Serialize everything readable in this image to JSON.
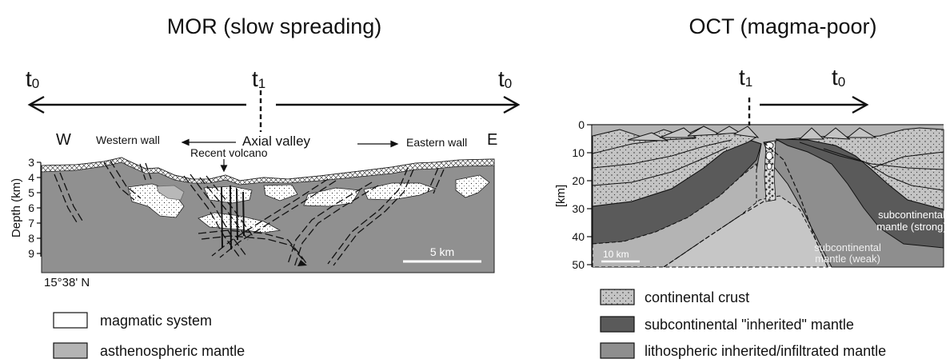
{
  "left_panel": {
    "title": "MOR (slow spreading)",
    "time_labels": {
      "left": "t",
      "left_sub": "0",
      "center": "t",
      "center_sub": "1",
      "right": "t",
      "right_sub": "0"
    },
    "labels": {
      "west": "W",
      "east": "E",
      "western_wall": "Western wall",
      "axial_valley": "Axial valley",
      "recent_volcano": "Recent volcano",
      "eastern_wall": "Eastern wall",
      "scale_bar": "5 km",
      "latitude": "15°38' N"
    },
    "depth_axis": {
      "label": "Depth (km)",
      "ticks": [
        "3",
        "4",
        "5",
        "6",
        "7",
        "8",
        "9"
      ]
    }
  },
  "right_panel": {
    "title": "OCT (magma-poor)",
    "time_labels": {
      "left": "t",
      "left_sub": "1",
      "right": "t",
      "right_sub": "0"
    },
    "axis": {
      "label": "[km]",
      "ticks": [
        "0",
        "10",
        "20",
        "30",
        "40",
        "50"
      ]
    },
    "labels": {
      "mantle_strong": [
        "subcontinental",
        "mantle (strong)"
      ],
      "mantle_weak": [
        "subcontinental",
        "mantle (weak)"
      ],
      "scale_bar": "10 km"
    }
  },
  "legend": {
    "left": [
      {
        "label": "magmatic system",
        "fill": "#ffffff"
      },
      {
        "label": "asthenospheric mantle",
        "fill": "#b4b4b4"
      }
    ],
    "right": [
      {
        "label": "continental crust",
        "fill": "#c4c4c4",
        "pattern": "dots"
      },
      {
        "label": "subcontinental \"inherited\" mantle",
        "fill": "#5a5a5a"
      },
      {
        "label": "lithospheric inherited/infiltrated mantle",
        "fill": "#8e8e8e"
      }
    ]
  },
  "colors": {
    "crust_gray": "#c4c4c4",
    "mor_section": "#909090",
    "dark_mantle": "#5a5a5a",
    "mid_mantle": "#8e8e8e",
    "light_mantle": "#b4b4b4"
  }
}
